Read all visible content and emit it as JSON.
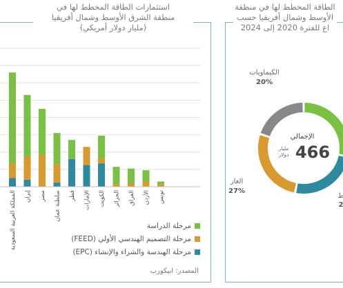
{
  "colors": {
    "study": "#7ac143",
    "feed": "#d89a2e",
    "epc": "#2e8a9e",
    "other": "#888888",
    "border": "#86b2b0",
    "grid": "#e2e2e2"
  },
  "left_title": [
    "استثمارات الطاقة المخطط لها في",
    "منطقة الشرق الأوسط وشمال أفريقيا",
    "(مليار دولار أمريكي)"
  ],
  "right_title": [
    "الطاقة المخطط لها في منطقة",
    "الأوسط وشمال أفريقيا حسب",
    "اع للفترة 2020 إلى 2024"
  ],
  "legend": [
    "مرحلة الدراسة",
    "مرحلة التصميم الهندسي الأولي (FEED)",
    "مرحلة الهندسة والشراء والإنشاء (EPC)"
  ],
  "source": "المصدر: ابيكورب",
  "donut_center": {
    "label": "الإجمالي",
    "value": "466",
    "unit_line1": "مليار",
    "unit_line2": "دولار"
  },
  "chart_data": [
    {
      "type": "bar",
      "title": "استثمارات الطاقة المخطط لها في منطقة الشرق الأوسط وشمال أفريقيا (مليار دولار أمريكي)",
      "categories": [
        "المملكة العربية السعودية",
        "إيران",
        "مصر",
        "سلطنة عمان",
        "قطر",
        "الإمارات",
        "الكويت",
        "الجزائر",
        "العراق",
        "الأردن",
        "تونس"
      ],
      "series": [
        {
          "name": "مرحلة الهندسة والشراء والإنشاء (EPC)",
          "values": [
            5,
            4,
            0,
            2.5,
            16,
            12.5,
            13.5,
            0,
            0,
            0,
            0
          ]
        },
        {
          "name": "مرحلة التصميم الهندسي الأولي (FEED)",
          "values": [
            8.5,
            13.5,
            18.5,
            10.5,
            0,
            10.5,
            3,
            1.5,
            2,
            3,
            1.5
          ]
        },
        {
          "name": "مرحلة الدراسة",
          "values": [
            52.5,
            35.5,
            26.5,
            18,
            11,
            0,
            13,
            10,
            8.5,
            6.5,
            1.5
          ]
        }
      ],
      "ylim": [
        0,
        80
      ]
    },
    {
      "type": "pie",
      "title": "الطاقة المخطط لها في منطقة الأوسط وشمال أفريقيا حسب اع للفترة 2020 إلى 2024",
      "labels": [
        "الكيماويات",
        "الغاز",
        "ط"
      ],
      "label_values": [
        "20%",
        "27%",
        "2"
      ],
      "slices": [
        {
          "label": "",
          "value": 28,
          "color": "#7ac143"
        },
        {
          "label": "ط",
          "value": 25,
          "color": "#2e8a9e"
        },
        {
          "label": "الغاز",
          "value": 27,
          "color": "#d89a2e"
        },
        {
          "label": "الكيماويات",
          "value": 20,
          "color": "#888888"
        }
      ],
      "total": "466"
    }
  ]
}
